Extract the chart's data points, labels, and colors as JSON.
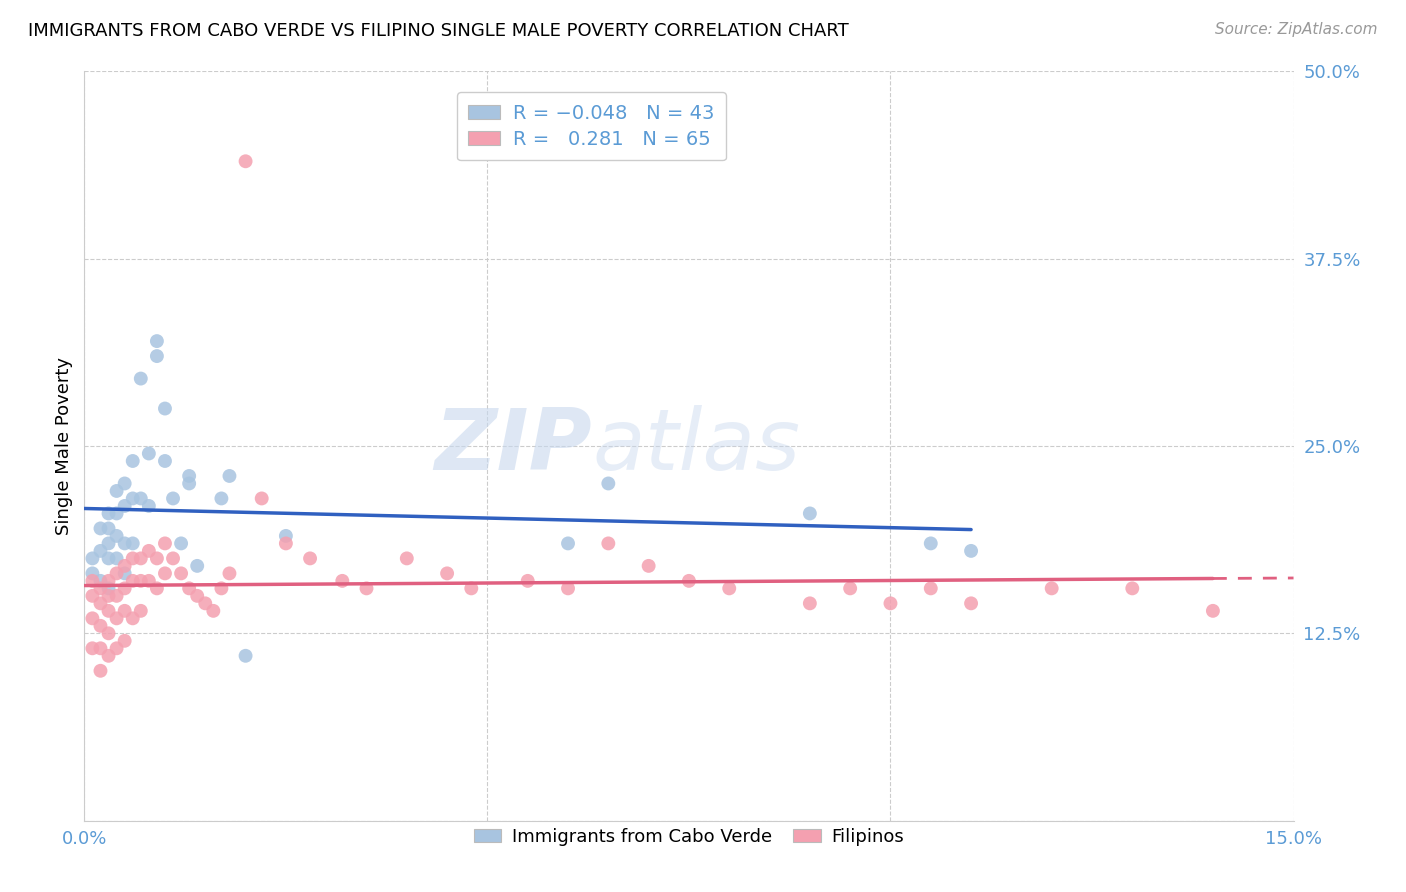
{
  "title": "IMMIGRANTS FROM CABO VERDE VS FILIPINO SINGLE MALE POVERTY CORRELATION CHART",
  "source": "Source: ZipAtlas.com",
  "ylabel": "Single Male Poverty",
  "x_min": 0.0,
  "x_max": 0.15,
  "y_min": 0.0,
  "y_max": 0.5,
  "x_ticks": [
    0.0,
    0.05,
    0.1,
    0.15
  ],
  "y_ticks": [
    0.0,
    0.125,
    0.25,
    0.375,
    0.5
  ],
  "cabo_verde_color": "#a8c4e0",
  "filipino_color": "#f4a0b0",
  "cabo_verde_R": -0.048,
  "cabo_verde_N": 43,
  "filipino_R": 0.281,
  "filipino_N": 65,
  "cabo_verde_line_color": "#3060c0",
  "filipino_line_color": "#e06080",
  "legend_label_1": "Immigrants from Cabo Verde",
  "legend_label_2": "Filipinos",
  "watermark_zip": "ZIP",
  "watermark_atlas": "atlas",
  "cabo_verde_x": [
    0.001,
    0.001,
    0.002,
    0.002,
    0.002,
    0.003,
    0.003,
    0.003,
    0.003,
    0.003,
    0.004,
    0.004,
    0.004,
    0.004,
    0.005,
    0.005,
    0.005,
    0.005,
    0.006,
    0.006,
    0.006,
    0.007,
    0.007,
    0.008,
    0.008,
    0.009,
    0.009,
    0.01,
    0.01,
    0.011,
    0.012,
    0.013,
    0.013,
    0.014,
    0.017,
    0.018,
    0.02,
    0.025,
    0.06,
    0.065,
    0.09,
    0.105,
    0.11
  ],
  "cabo_verde_y": [
    0.175,
    0.165,
    0.195,
    0.18,
    0.16,
    0.205,
    0.195,
    0.185,
    0.175,
    0.155,
    0.22,
    0.205,
    0.19,
    0.175,
    0.225,
    0.21,
    0.185,
    0.165,
    0.24,
    0.215,
    0.185,
    0.295,
    0.215,
    0.245,
    0.21,
    0.32,
    0.31,
    0.24,
    0.275,
    0.215,
    0.185,
    0.23,
    0.225,
    0.17,
    0.215,
    0.23,
    0.11,
    0.19,
    0.185,
    0.225,
    0.205,
    0.185,
    0.18
  ],
  "filipino_x": [
    0.001,
    0.001,
    0.001,
    0.001,
    0.002,
    0.002,
    0.002,
    0.002,
    0.002,
    0.003,
    0.003,
    0.003,
    0.003,
    0.003,
    0.004,
    0.004,
    0.004,
    0.004,
    0.005,
    0.005,
    0.005,
    0.005,
    0.006,
    0.006,
    0.006,
    0.007,
    0.007,
    0.007,
    0.008,
    0.008,
    0.009,
    0.009,
    0.01,
    0.01,
    0.011,
    0.012,
    0.013,
    0.014,
    0.015,
    0.016,
    0.017,
    0.018,
    0.02,
    0.022,
    0.025,
    0.028,
    0.032,
    0.035,
    0.04,
    0.045,
    0.048,
    0.055,
    0.06,
    0.065,
    0.07,
    0.075,
    0.08,
    0.09,
    0.095,
    0.1,
    0.105,
    0.11,
    0.12,
    0.13,
    0.14
  ],
  "filipino_y": [
    0.16,
    0.15,
    0.135,
    0.115,
    0.155,
    0.145,
    0.13,
    0.115,
    0.1,
    0.16,
    0.15,
    0.14,
    0.125,
    0.11,
    0.165,
    0.15,
    0.135,
    0.115,
    0.17,
    0.155,
    0.14,
    0.12,
    0.175,
    0.16,
    0.135,
    0.175,
    0.16,
    0.14,
    0.18,
    0.16,
    0.175,
    0.155,
    0.185,
    0.165,
    0.175,
    0.165,
    0.155,
    0.15,
    0.145,
    0.14,
    0.155,
    0.165,
    0.44,
    0.215,
    0.185,
    0.175,
    0.16,
    0.155,
    0.175,
    0.165,
    0.155,
    0.16,
    0.155,
    0.185,
    0.17,
    0.16,
    0.155,
    0.145,
    0.155,
    0.145,
    0.155,
    0.145,
    0.155,
    0.155,
    0.14
  ]
}
